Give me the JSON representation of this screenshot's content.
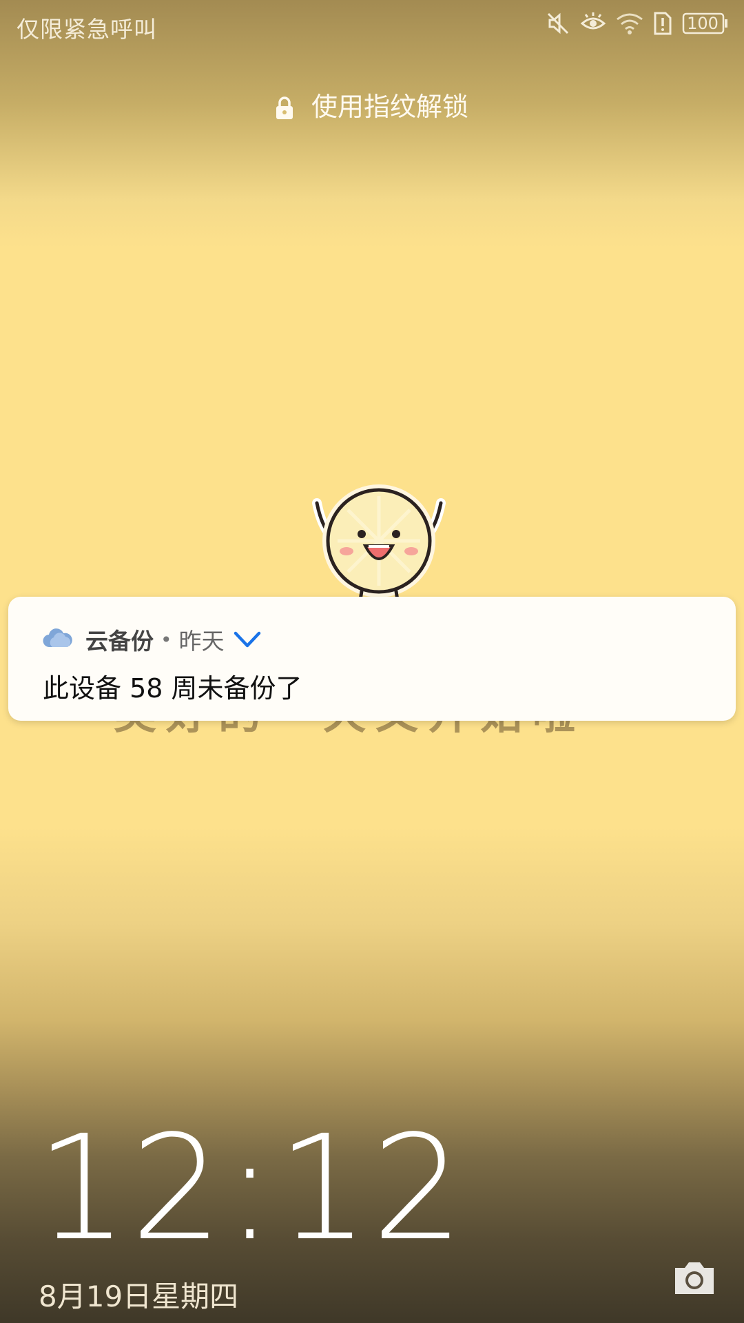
{
  "status_bar": {
    "emergency_text": "仅限紧急呼叫",
    "battery_level": "100",
    "icons": [
      "mute-icon",
      "eye-comfort-icon",
      "wifi-icon",
      "sim-alert-icon",
      "battery-icon"
    ]
  },
  "lock_hint": {
    "text": "使用指纹解锁",
    "icon": "lock-icon"
  },
  "wallpaper": {
    "slogan": "美好的一天又开始啦~"
  },
  "notification": {
    "app_icon": "cloud-icon",
    "app_name": "云备份",
    "separator": "•",
    "time": "昨天",
    "expand_icon": "chevron-down-icon",
    "message": "此设备 58 周未备份了"
  },
  "clock": {
    "time": "12:12",
    "date": "8月19日星期四"
  },
  "shortcuts": {
    "camera_icon": "camera-icon"
  },
  "colors": {
    "accent_blue": "#1a73e8",
    "wallpaper_yellow": "#fde18c"
  }
}
